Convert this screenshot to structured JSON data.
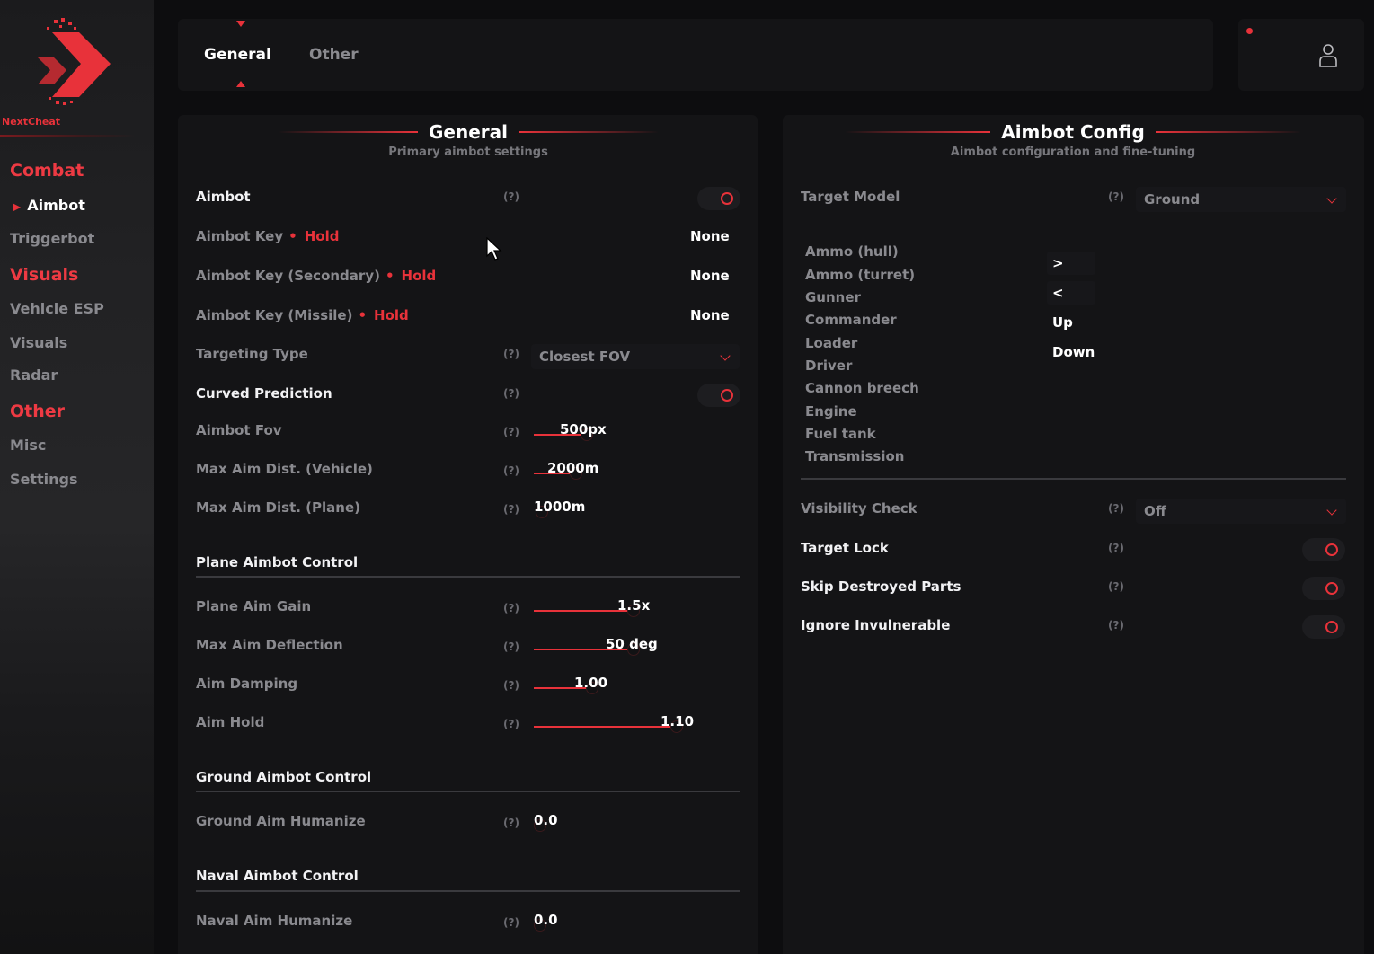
{
  "app": {
    "brand": "NextCheat"
  },
  "sidebar": {
    "combat": {
      "label": "Combat",
      "items": [
        "Aimbot",
        "Triggerbot"
      ]
    },
    "visuals": {
      "label": "Visuals",
      "items": [
        "Vehicle ESP",
        "Visuals",
        "Radar"
      ]
    },
    "other": {
      "label": "Other",
      "items": [
        "Misc",
        "Settings"
      ]
    }
  },
  "tabs": [
    "General",
    "Other"
  ],
  "left": {
    "title": "General",
    "subtitle": "Primary aimbot settings",
    "help": "(?)",
    "aimbot": {
      "label": "Aimbot",
      "enabled": true
    },
    "key1": {
      "label": "Aimbot Key",
      "mode": "Hold",
      "value": "None"
    },
    "key2": {
      "label": "Aimbot Key (Secondary)",
      "mode": "Hold",
      "value": "None"
    },
    "key3": {
      "label": "Aimbot Key (Missile)",
      "mode": "Hold",
      "value": "None"
    },
    "targeting": {
      "label": "Targeting Type",
      "value": "Closest FOV"
    },
    "curved": {
      "label": "Curved Prediction",
      "enabled": true
    },
    "fov": {
      "label": "Aimbot Fov",
      "value": "500px"
    },
    "maxVehicle": {
      "label": "Max Aim Dist. (Vehicle)",
      "value": "2000m"
    },
    "maxPlane": {
      "label": "Max Aim Dist. (Plane)",
      "value": "1000m"
    },
    "plane": {
      "heading": "Plane Aimbot Control",
      "gain": {
        "label": "Plane Aim Gain",
        "value": "1.5x"
      },
      "deflection": {
        "label": "Max Aim Deflection",
        "value": "50 deg"
      },
      "damping": {
        "label": "Aim Damping",
        "value": "1.00"
      },
      "hold": {
        "label": "Aim Hold",
        "value": "1.10"
      }
    },
    "ground": {
      "heading": "Ground Aimbot Control",
      "humanize": {
        "label": "Ground Aim Humanize",
        "value": "0.0"
      }
    },
    "naval": {
      "heading": "Naval Aimbot Control",
      "humanize": {
        "label": "Naval Aim Humanize",
        "value": "0.0"
      }
    }
  },
  "right": {
    "title": "Aimbot Config",
    "subtitle": "Aimbot configuration and fine-tuning",
    "help": "(?)",
    "targetModel": {
      "label": "Target Model",
      "value": "Ground"
    },
    "parts": [
      "Ammo (hull)",
      "Ammo (turret)",
      "Gunner",
      "Commander",
      "Loader",
      "Driver",
      "Cannon breech",
      "Engine",
      "Fuel tank",
      "Transmission"
    ],
    "controls": [
      ">",
      "<",
      "Up",
      "Down"
    ],
    "visibility": {
      "label": "Visibility Check",
      "value": "Off"
    },
    "targetLock": {
      "label": "Target Lock",
      "enabled": true
    },
    "skipDestroyed": {
      "label": "Skip Destroyed Parts",
      "enabled": true
    },
    "ignoreInvuln": {
      "label": "Ignore Invulnerable",
      "enabled": true
    }
  },
  "colors": {
    "accent": "#e8323a",
    "background": "#0d0d0f",
    "panel": "#141416"
  }
}
